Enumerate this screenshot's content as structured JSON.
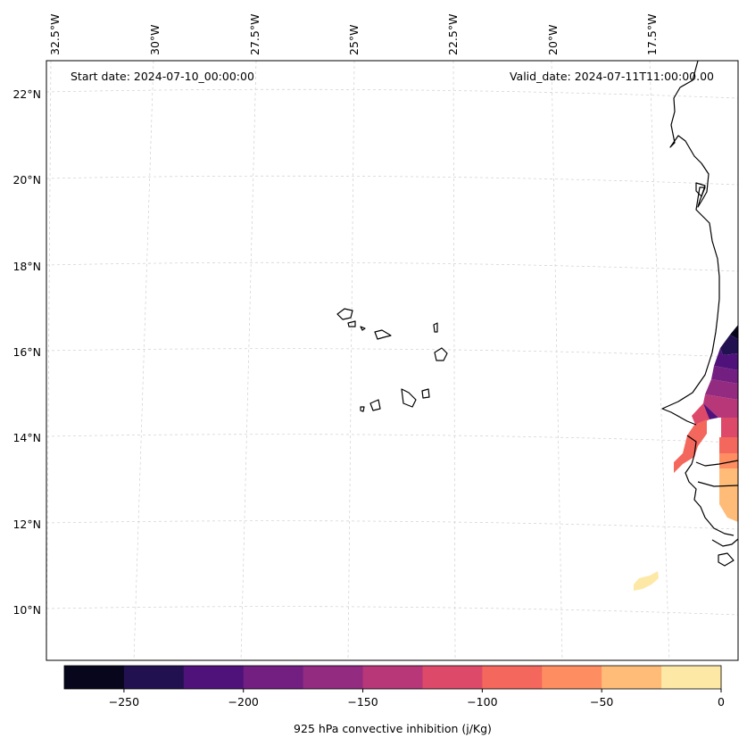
{
  "map": {
    "start_date": "Start date: 2024-07-10_00:00:00",
    "valid_date": "Valid_date: 2024-07-11T11:00:00.00",
    "lon_labels": [
      "32.5°W",
      "30°W",
      "27.5°W",
      "25°W",
      "22.5°W",
      "20°W",
      "17.5°W"
    ],
    "lat_labels": [
      "22°N",
      "20°N",
      "18°N",
      "16°N",
      "14°N",
      "12°N",
      "10°N"
    ],
    "features": [
      "Cape Verde islands",
      "West African coastline",
      "Senegal",
      "Gambia",
      "Guinea-Bissau"
    ]
  },
  "colorbar": {
    "label": "925 hPa convective inhibition (j/Kg)",
    "ticks": [
      "−250",
      "−200",
      "−150",
      "−100",
      "−50",
      "0"
    ],
    "range": [
      -275,
      0
    ],
    "colors": [
      "#07061c",
      "#221150",
      "#4f127b",
      "#721f81",
      "#932b80",
      "#b73779",
      "#dd4a69",
      "#f4675c",
      "#fe8e62",
      "#febc78",
      "#fde8a6"
    ]
  }
}
